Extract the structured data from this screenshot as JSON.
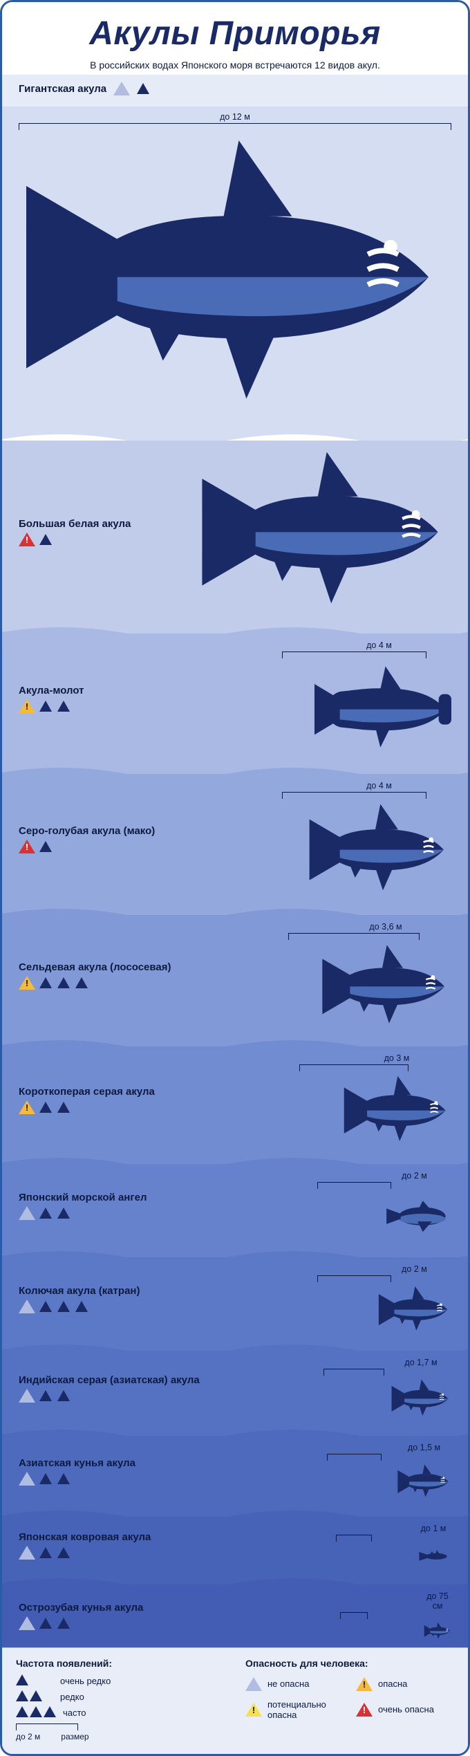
{
  "type": "infographic",
  "title": "Акулы Приморья",
  "subtitle": "В российских водах Японского моря встречаются 12 видов акул.",
  "title_color": "#1a2a66",
  "text_color": "#0d1a40",
  "border_color": "#2b5aa8",
  "shark_fill": "#1a2a66",
  "shark_belly": "#4a6bb5",
  "danger_colors": {
    "none": "#b0bde0",
    "potential": "#f6e04b",
    "danger": "#f6b93b",
    "very": "#d93232"
  },
  "freq_triangle_color": "#1a2a66",
  "band_colors": [
    "#d5ddf2",
    "#c1cceb",
    "#a9b9e3",
    "#93a8dc",
    "#8199d6",
    "#728cd1",
    "#6682cc",
    "#5c79c7",
    "#5471c2",
    "#4d6abd",
    "#4763b8",
    "#425db3"
  ],
  "wave_sep_color": "#ffffff",
  "legend": {
    "freq_title": "Частота появлений:",
    "freq_items": [
      {
        "count": 1,
        "label": "очень редко"
      },
      {
        "count": 2,
        "label": "редко"
      },
      {
        "count": 3,
        "label": "часто"
      }
    ],
    "size_label": "размер",
    "size_example": "до 2 м",
    "danger_title": "Опасность для человека:",
    "danger_items": [
      {
        "level": "none",
        "label": "не опасна"
      },
      {
        "level": "danger",
        "label": "опасна"
      },
      {
        "level": "potential",
        "label": "потенциально опасна"
      },
      {
        "level": "very",
        "label": "очень опасна"
      }
    ]
  },
  "sharks": [
    {
      "name": "Гигантская акула",
      "size": "до 12 м",
      "danger": "none",
      "freq": 1,
      "scale": 1.0,
      "full_width": true
    },
    {
      "name": "Большая белая акула",
      "size": "",
      "danger": "very",
      "freq": 1,
      "scale": 0.58
    },
    {
      "name": "Акула-молот",
      "size": "до 4 м",
      "danger": "danger",
      "freq": 2,
      "scale": 0.33,
      "variant": "hammerhead"
    },
    {
      "name": "Серо-голубая акула (мако)",
      "size": "до 4 м",
      "danger": "very",
      "freq": 1,
      "scale": 0.33
    },
    {
      "name": "Сельдевая акула (лососевая)",
      "size": "до 3,6 м",
      "danger": "danger",
      "freq": 3,
      "scale": 0.3
    },
    {
      "name": "Короткоперая серая акула",
      "size": "до 3 м",
      "danger": "danger",
      "freq": 2,
      "scale": 0.25
    },
    {
      "name": "Японский морской ангел",
      "size": "до 2 м",
      "danger": "none",
      "freq": 2,
      "scale": 0.17,
      "variant": "angel"
    },
    {
      "name": "Колючая акула (катран)",
      "size": "до 2 м",
      "danger": "none",
      "freq": 3,
      "scale": 0.17
    },
    {
      "name": "Индийская серая (азиатская) акула",
      "size": "до 1,7 м",
      "danger": "none",
      "freq": 2,
      "scale": 0.14
    },
    {
      "name": "Азиатская кунья акула",
      "size": "до 1,5 м",
      "danger": "none",
      "freq": 2,
      "scale": 0.125
    },
    {
      "name": "Японская ковровая акула",
      "size": "до 1 м",
      "danger": "none",
      "freq": 2,
      "scale": 0.083,
      "variant": "carpet"
    },
    {
      "name": "Острозубая кунья акула",
      "size": "до 75 см",
      "danger": "none",
      "freq": 2,
      "scale": 0.062
    }
  ]
}
